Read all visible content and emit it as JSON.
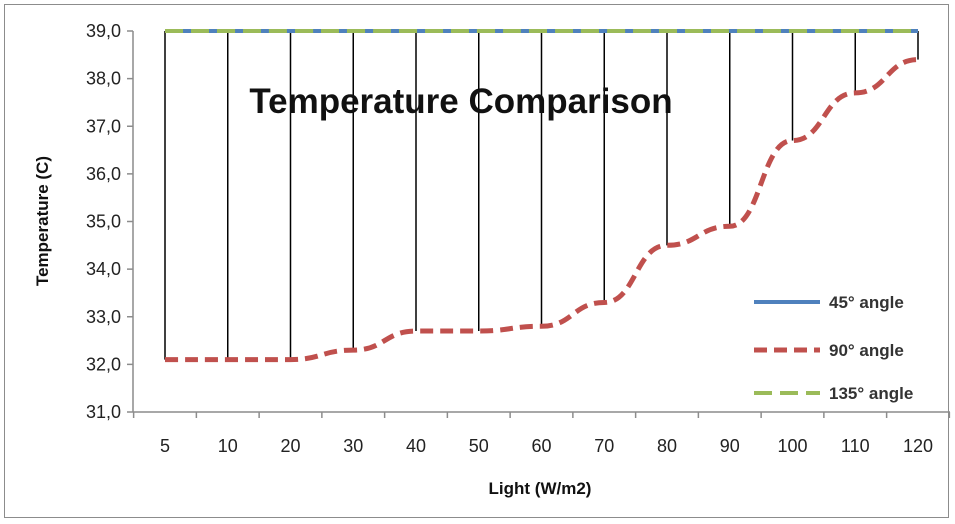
{
  "chart_data": {
    "type": "line",
    "title": "Temperature Comparison",
    "xlabel": "Light (W/m2)",
    "ylabel": "Temperature (C)",
    "categories": [
      "5",
      "10",
      "20",
      "30",
      "40",
      "50",
      "60",
      "70",
      "80",
      "90",
      "100",
      "110",
      "120"
    ],
    "y_tick_labels": [
      "31,0",
      "32,0",
      "33,0",
      "34,0",
      "35,0",
      "36,0",
      "37,0",
      "38,0",
      "39,0"
    ],
    "ylim": [
      31,
      39
    ],
    "y_step": 1,
    "grid": false,
    "legend_position": "right",
    "series": [
      {
        "name": "45° angle",
        "color": "#4f81bd",
        "style": "solid",
        "values": [
          39,
          39,
          39,
          39,
          39,
          39,
          39,
          39,
          39,
          39,
          39,
          39,
          39
        ]
      },
      {
        "name": "90° angle",
        "color": "#c0504d",
        "style": "dashed",
        "values": [
          32.1,
          32.1,
          32.1,
          32.3,
          32.7,
          32.7,
          32.8,
          33.3,
          34.5,
          34.9,
          36.7,
          37.7,
          38.4
        ]
      },
      {
        "name": "135° angle",
        "color": "#9bbb59",
        "style": "long-dashed",
        "values": [
          39,
          39,
          39,
          39,
          39,
          39,
          39,
          39,
          39,
          39,
          39,
          39,
          39
        ]
      }
    ],
    "drop_lines": {
      "color": "#000000",
      "from_series": "90° angle",
      "to_value": 39
    }
  }
}
